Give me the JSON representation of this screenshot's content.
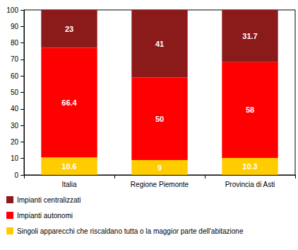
{
  "chart_data": {
    "type": "bar",
    "stacked": true,
    "data_labels": true,
    "grid": false,
    "legend": "bottom",
    "categories": [
      "Italia",
      "Regione Piemonte",
      "Provincia di Asti"
    ],
    "series": [
      {
        "name": "Singoli apparecchi che riscaldano tutta o la maggior parte dell'abitazione",
        "color": "#ffcc00",
        "values": [
          10.6,
          9,
          10.3
        ]
      },
      {
        "name": "Impianti autonomi",
        "color": "#ff0000",
        "values": [
          66.4,
          50,
          58
        ]
      },
      {
        "name": "Impianti centralizzati",
        "color": "#8b1a1a",
        "values": [
          23,
          41,
          31.7
        ]
      }
    ],
    "ylim": [
      0,
      100
    ],
    "yticks": [
      0,
      10,
      20,
      30,
      40,
      50,
      60,
      70,
      80,
      90,
      100
    ]
  }
}
